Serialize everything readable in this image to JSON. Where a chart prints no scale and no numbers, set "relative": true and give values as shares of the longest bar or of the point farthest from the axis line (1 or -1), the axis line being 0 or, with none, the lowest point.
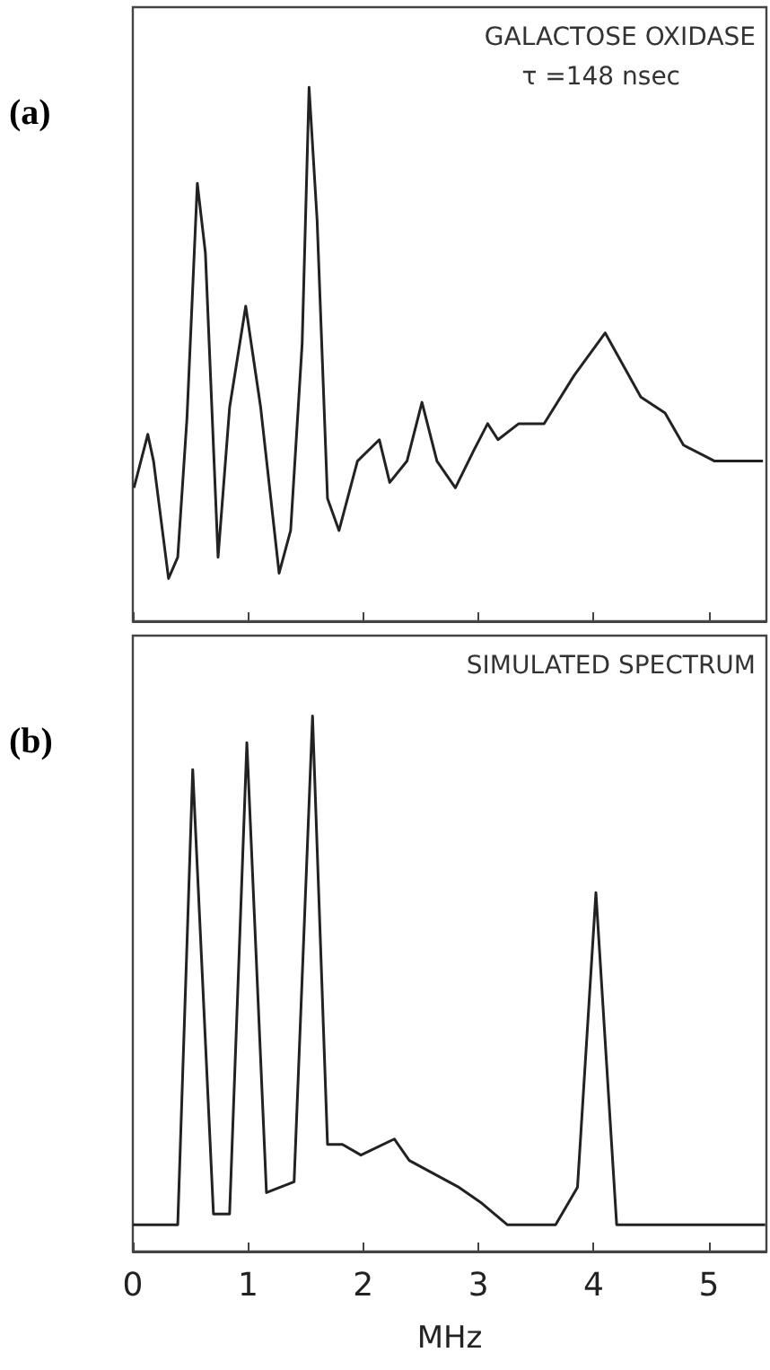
{
  "chart_data": [
    {
      "type": "line",
      "title": "(a)",
      "relative": true,
      "marker": "none",
      "tick_labels": false,
      "xlim": [
        0,
        5.5
      ],
      "xticks": [
        0,
        1,
        2,
        3,
        4,
        5
      ],
      "annotations": [
        "GALACTOSE OXIDASE",
        "τ =148 nsec"
      ],
      "series": [
        {
          "color": "#222222",
          "x": [
            0.01,
            0.13,
            0.18,
            0.31,
            0.39,
            0.47,
            0.56,
            0.63,
            0.74,
            0.84,
            0.98,
            1.11,
            1.27,
            1.37,
            1.47,
            1.53,
            1.6,
            1.69,
            1.79,
            1.95,
            2.14,
            2.23,
            2.38,
            2.51,
            2.64,
            2.8,
            2.96,
            3.08,
            3.17,
            3.35,
            3.57,
            3.83,
            4.1,
            4.41,
            4.62,
            4.78,
            5.05,
            5.47
          ],
          "values": [
            0.25,
            0.35,
            0.3,
            0.08,
            0.12,
            0.38,
            0.82,
            0.69,
            0.12,
            0.4,
            0.59,
            0.4,
            0.09,
            0.17,
            0.52,
            1.0,
            0.75,
            0.23,
            0.17,
            0.3,
            0.34,
            0.26,
            0.3,
            0.41,
            0.3,
            0.25,
            0.32,
            0.37,
            0.34,
            0.37,
            0.37,
            0.46,
            0.54,
            0.42,
            0.39,
            0.33,
            0.3,
            0.3
          ]
        }
      ]
    },
    {
      "type": "line",
      "title": "(b)",
      "relative": true,
      "marker": "none",
      "tick_labels": "x",
      "xlim": [
        0,
        5.5
      ],
      "xticks": [
        0,
        1,
        2,
        3,
        4,
        5
      ],
      "xlabel": "MHz",
      "annotations": [
        "SIMULATED SPECTRUM"
      ],
      "series": [
        {
          "color": "#222222",
          "x": [
            0.0,
            0.39,
            0.52,
            0.7,
            0.84,
            0.99,
            1.16,
            1.4,
            1.56,
            1.69,
            1.82,
            1.98,
            2.27,
            2.4,
            2.83,
            3.03,
            3.25,
            3.67,
            3.86,
            4.02,
            4.2,
            5.49
          ],
          "values": [
            0.05,
            0.05,
            0.9,
            0.07,
            0.07,
            0.95,
            0.11,
            0.13,
            1.0,
            0.2,
            0.2,
            0.18,
            0.21,
            0.17,
            0.12,
            0.09,
            0.05,
            0.05,
            0.12,
            0.67,
            0.05,
            0.05
          ]
        }
      ]
    }
  ]
}
